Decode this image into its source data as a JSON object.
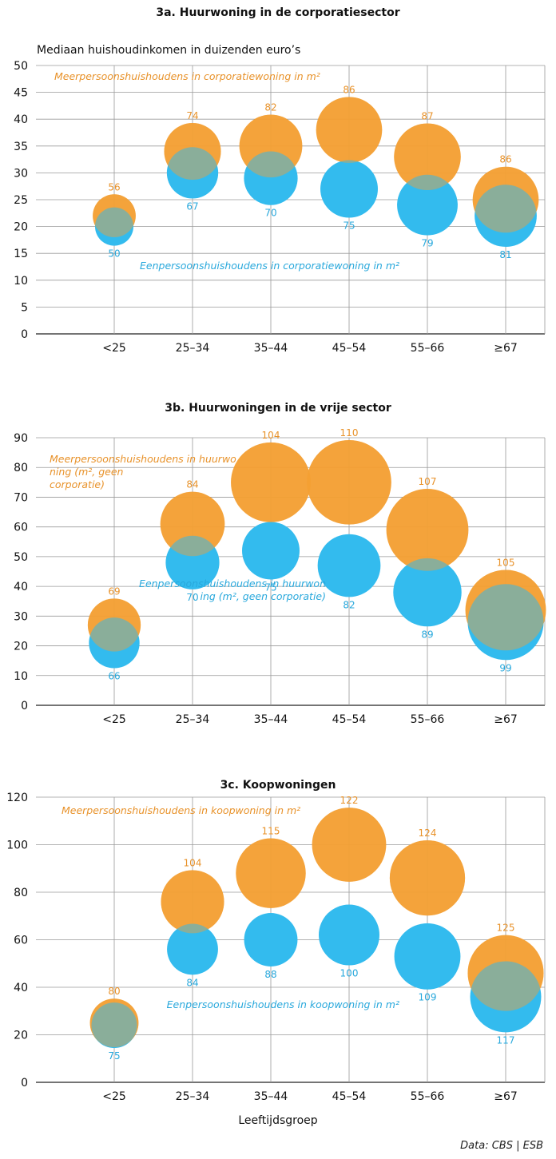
{
  "colors": {
    "orange": "#F4A032",
    "blue": "#33BBEE",
    "orange_text": "#E8922A",
    "blue_text": "#28A8DC",
    "overlap": "#B09A4C"
  },
  "y_axis_label": "Mediaan huishoudinkomen in duizenden euro’s",
  "x_axis_label": "Leeftijdsgroep",
  "source": "Data: CBS | ESB",
  "chart_data": [
    {
      "type": "scatter",
      "title": "3a. Huurwoning in de corporatiesector",
      "categories": [
        "<25",
        "25–34",
        "35–44",
        "45–54",
        "55–66",
        "≥67"
      ],
      "ylim": [
        0,
        50
      ],
      "yticks": [
        0,
        5,
        10,
        15,
        20,
        25,
        30,
        35,
        40,
        45,
        50
      ],
      "series": [
        {
          "name": "Meerpersoonshuishoudens in corporatiewoning in m²",
          "color": "orange",
          "y": [
            22,
            34,
            35,
            38,
            33,
            25
          ],
          "size_m2": [
            56,
            74,
            82,
            86,
            87,
            86
          ]
        },
        {
          "name": "Eenpersoonshuishoudens in corporatiewoning in m²",
          "color": "blue",
          "y": [
            20,
            30,
            29,
            27,
            24,
            22
          ],
          "size_m2": [
            50,
            67,
            70,
            75,
            79,
            81
          ]
        }
      ],
      "annotations": [
        {
          "series": 0,
          "text": "Meerpersoonshuishoudens in corporatiewoning in m²"
        },
        {
          "series": 1,
          "text": "Eenpersoonshuishoudens in corporatiewoning in m²"
        }
      ]
    },
    {
      "type": "scatter",
      "title": "3b. Huurwoningen in de vrije sector",
      "categories": [
        "<25",
        "25–34",
        "35–44",
        "45–54",
        "55–66",
        "≥67"
      ],
      "ylim": [
        0,
        90
      ],
      "yticks": [
        0,
        10,
        20,
        30,
        40,
        50,
        60,
        70,
        80,
        90
      ],
      "series": [
        {
          "name": "Meerpersoonshuishoudens in huurwoning (m², geen corporatie)",
          "color": "orange",
          "y": [
            27,
            61,
            75,
            75,
            59,
            32
          ],
          "size_m2": [
            69,
            84,
            104,
            110,
            107,
            105
          ]
        },
        {
          "name": "Eenpersoonshuishoudens in huurwoning (m², geen corporatie)",
          "color": "blue",
          "y": [
            21,
            48,
            52,
            47,
            38,
            28
          ],
          "size_m2": [
            66,
            70,
            75,
            82,
            89,
            99
          ]
        }
      ],
      "annotations": [
        {
          "series": 0,
          "text": "Meerpersoonshuishoudens in huurwoning (m², geen corporatie)"
        },
        {
          "series": 1,
          "text": "Eenpersoonshuishoudens in huurwoning (m², geen corporatie)"
        }
      ]
    },
    {
      "type": "scatter",
      "title": "3c. Koopwoningen",
      "categories": [
        "<25",
        "25–34",
        "35–44",
        "45–54",
        "55–66",
        "≥67"
      ],
      "ylim": [
        0,
        120
      ],
      "yticks": [
        0,
        20,
        40,
        60,
        80,
        100,
        120
      ],
      "series": [
        {
          "name": "Meerpersoonshuishoudens in koopwoning in m²",
          "color": "orange",
          "y": [
            25,
            76,
            88,
            100,
            86,
            46
          ],
          "size_m2": [
            80,
            104,
            115,
            122,
            124,
            125
          ]
        },
        {
          "name": "Eenpersoonshuishoudens in koopwoning in m²",
          "color": "blue",
          "y": [
            24,
            56,
            60,
            62,
            53,
            36
          ],
          "size_m2": [
            75,
            84,
            88,
            100,
            109,
            117
          ]
        }
      ],
      "annotations": [
        {
          "series": 0,
          "text": "Meerpersoonshuishoudens in koopwoning in m²"
        },
        {
          "series": 1,
          "text": "Eenpersoonshuishoudens in koopwoning in m²"
        }
      ]
    }
  ]
}
